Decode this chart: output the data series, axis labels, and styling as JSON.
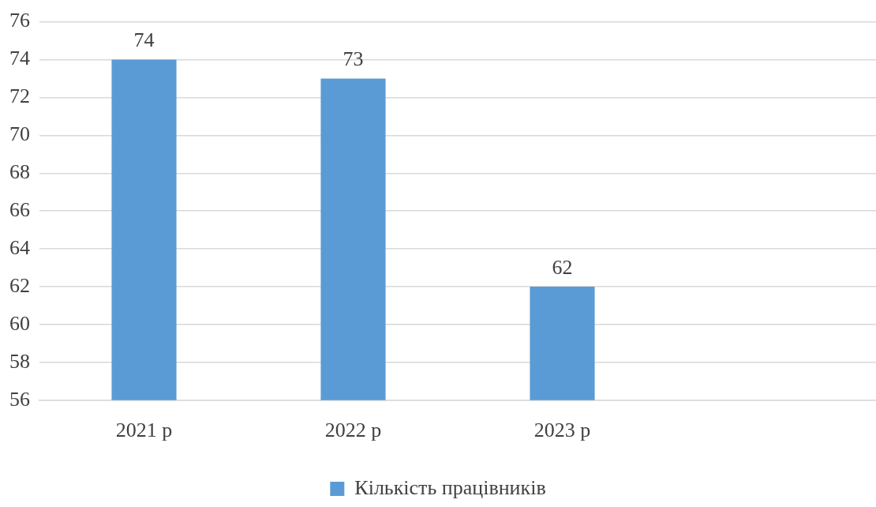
{
  "chart_data": {
    "type": "bar",
    "categories": [
      "2021 р",
      "2022 р",
      "2023 р",
      null
    ],
    "series": [
      {
        "name": "Кількість працівників",
        "color": "#5b9bd5",
        "values": [
          74,
          73,
          62,
          null
        ]
      }
    ],
    "ylim": [
      56,
      76
    ],
    "yticks": [
      56,
      58,
      60,
      62,
      64,
      66,
      68,
      70,
      72,
      74,
      76
    ],
    "grid": "y",
    "legend": "bottom",
    "data_labels": true
  }
}
